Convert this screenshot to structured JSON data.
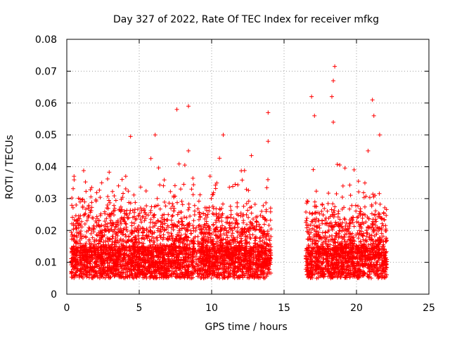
{
  "chart_data": {
    "type": "scatter",
    "title": "Day 327 of 2022, Rate Of TEC Index for receiver mfkg",
    "xlabel": "GPS time / hours",
    "ylabel": "ROTI / TECUs",
    "xlim": [
      0,
      25
    ],
    "ylim": [
      0,
      0.08
    ],
    "x_ticks": [
      0,
      5,
      10,
      15,
      20,
      25
    ],
    "x_tick_labels": [
      "0",
      "5",
      "10",
      "15",
      "20",
      "25"
    ],
    "y_ticks": [
      0,
      0.01,
      0.02,
      0.03,
      0.04,
      0.05,
      0.06,
      0.07,
      0.08
    ],
    "y_tick_labels": [
      "0",
      "0.01",
      "0.02",
      "0.03",
      "0.04",
      "0.05",
      "0.06",
      "0.07",
      "0.08"
    ],
    "grid": true,
    "marker": "+",
    "color": "#ff0000",
    "data_segments": [
      {
        "x_start": 0.3,
        "x_end": 14.1
      },
      {
        "x_start": 16.5,
        "x_end": 22.1
      }
    ],
    "highlight_points": [
      {
        "x": 0.5,
        "y": 0.037
      },
      {
        "x": 4.4,
        "y": 0.0495
      },
      {
        "x": 6.1,
        "y": 0.05
      },
      {
        "x": 7.6,
        "y": 0.058
      },
      {
        "x": 8.4,
        "y": 0.059
      },
      {
        "x": 8.4,
        "y": 0.045
      },
      {
        "x": 10.8,
        "y": 0.05
      },
      {
        "x": 13.9,
        "y": 0.057
      },
      {
        "x": 13.9,
        "y": 0.048
      },
      {
        "x": 16.9,
        "y": 0.062
      },
      {
        "x": 17.1,
        "y": 0.056
      },
      {
        "x": 18.5,
        "y": 0.0715
      },
      {
        "x": 18.4,
        "y": 0.067
      },
      {
        "x": 18.3,
        "y": 0.062
      },
      {
        "x": 18.4,
        "y": 0.054
      },
      {
        "x": 21.1,
        "y": 0.061
      },
      {
        "x": 21.2,
        "y": 0.056
      },
      {
        "x": 21.6,
        "y": 0.05
      },
      {
        "x": 20.8,
        "y": 0.045
      }
    ]
  }
}
